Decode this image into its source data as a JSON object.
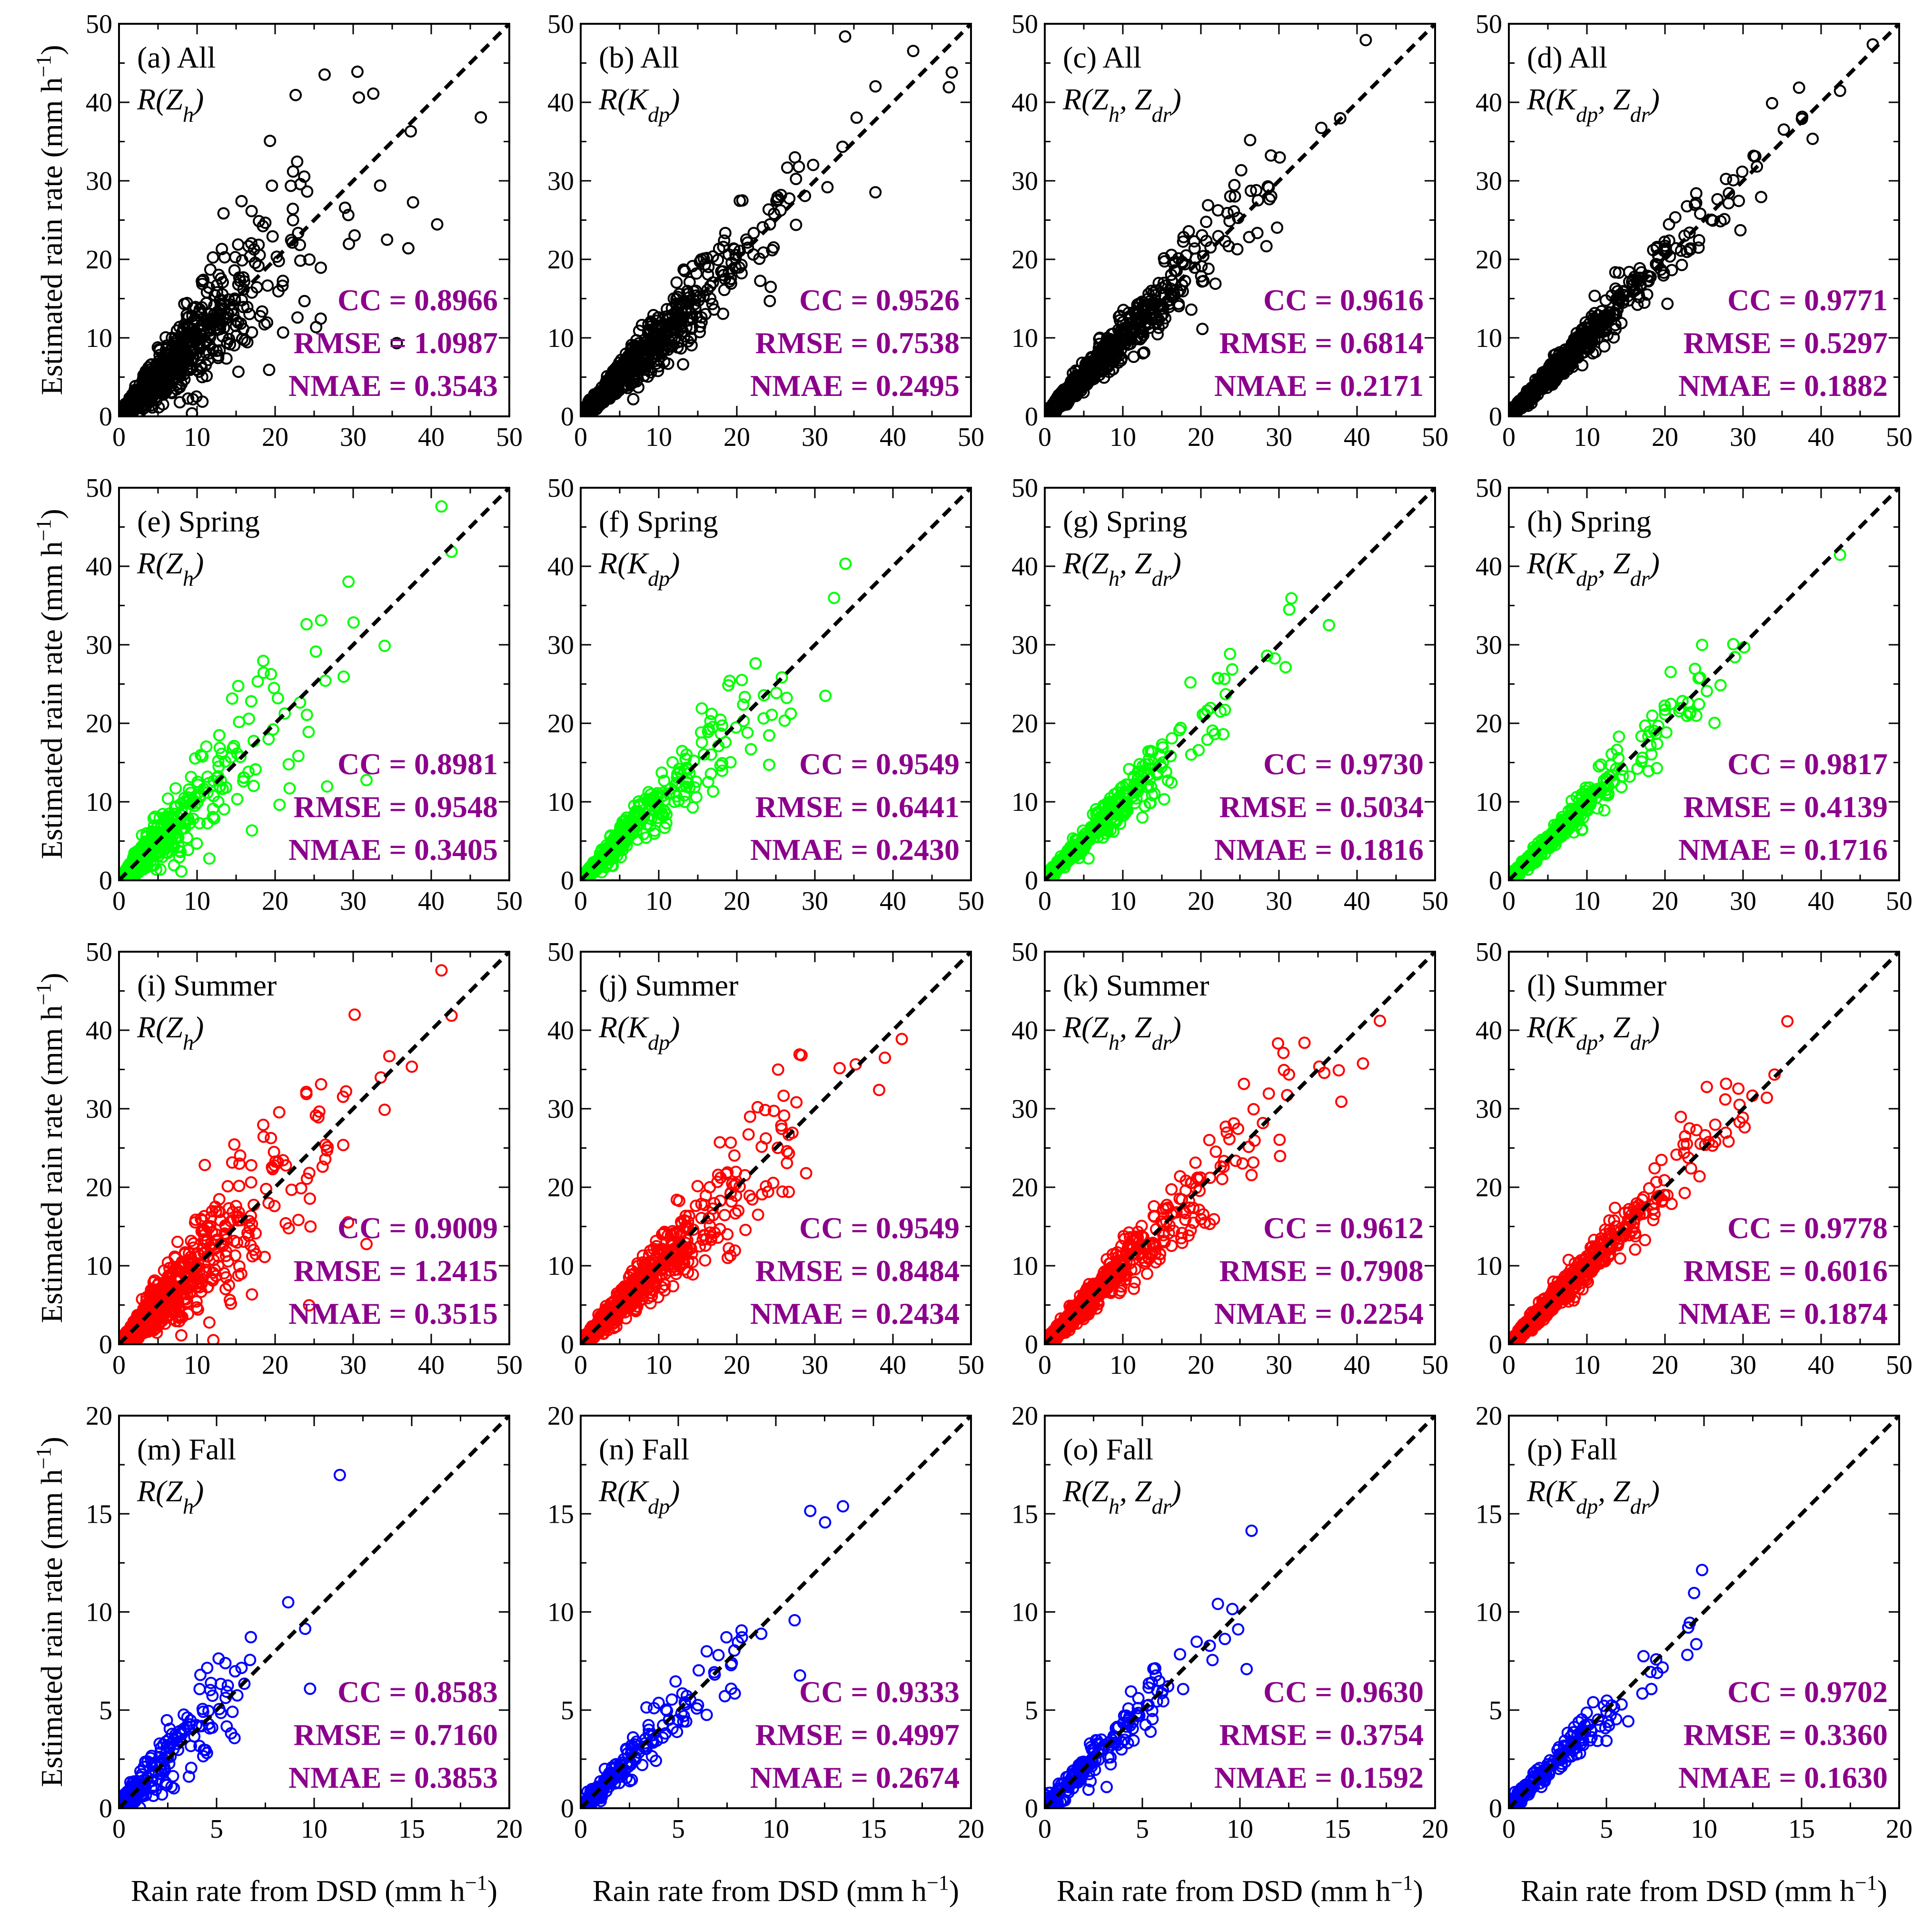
{
  "figure": {
    "xlabel": "Rain rate from DSD (mm h⁻¹)",
    "ylabel": "Estimated rain rate (mm h⁻¹)"
  },
  "colors": {
    "All": "#000000",
    "Spring": "#00ff00",
    "Summer": "#ff0000",
    "Fall": "#0000ff",
    "stats": "#8b008b",
    "identity": "#000000"
  },
  "chart_data": [
    {
      "type": "scatter",
      "id": "a",
      "title": "(a) All",
      "estimator": "R(Zh)",
      "season": "All",
      "xlim": [
        0,
        50
      ],
      "ylim": [
        0,
        50
      ],
      "ticks": [
        0,
        10,
        20,
        30,
        40,
        50
      ],
      "stats": {
        "cc": "CC = 0.8966",
        "rmse": "RMSE = 1.0987",
        "nmae": "NMAE = 0.3543"
      }
    },
    {
      "type": "scatter",
      "id": "b",
      "title": "(b) All",
      "estimator": "R(Kdp)",
      "season": "All",
      "xlim": [
        0,
        50
      ],
      "ylim": [
        0,
        50
      ],
      "ticks": [
        0,
        10,
        20,
        30,
        40,
        50
      ],
      "stats": {
        "cc": "CC = 0.9526",
        "rmse": "RMSE = 0.7538",
        "nmae": "NMAE = 0.2495"
      }
    },
    {
      "type": "scatter",
      "id": "c",
      "title": "(c) All",
      "estimator": "R(Zh, Zdr)",
      "season": "All",
      "xlim": [
        0,
        50
      ],
      "ylim": [
        0,
        50
      ],
      "ticks": [
        0,
        10,
        20,
        30,
        40,
        50
      ],
      "stats": {
        "cc": "CC = 0.9616",
        "rmse": "RMSE = 0.6814",
        "nmae": "NMAE = 0.2171"
      }
    },
    {
      "type": "scatter",
      "id": "d",
      "title": "(d) All",
      "estimator": "R(Kdp, Zdr)",
      "season": "All",
      "xlim": [
        0,
        50
      ],
      "ylim": [
        0,
        50
      ],
      "ticks": [
        0,
        10,
        20,
        30,
        40,
        50
      ],
      "stats": {
        "cc": "CC = 0.9771",
        "rmse": "RMSE = 0.5297",
        "nmae": "NMAE = 0.1882"
      }
    },
    {
      "type": "scatter",
      "id": "e",
      "title": "(e) Spring",
      "estimator": "R(Zh)",
      "season": "Spring",
      "xlim": [
        0,
        50
      ],
      "ylim": [
        0,
        50
      ],
      "ticks": [
        0,
        10,
        20,
        30,
        40,
        50
      ],
      "stats": {
        "cc": "CC = 0.8981",
        "rmse": "RMSE = 0.9548",
        "nmae": "NMAE = 0.3405"
      }
    },
    {
      "type": "scatter",
      "id": "f",
      "title": "(f) Spring",
      "estimator": "R(Kdp)",
      "season": "Spring",
      "xlim": [
        0,
        50
      ],
      "ylim": [
        0,
        50
      ],
      "ticks": [
        0,
        10,
        20,
        30,
        40,
        50
      ],
      "stats": {
        "cc": "CC = 0.9549",
        "rmse": "RMSE = 0.6441",
        "nmae": "NMAE = 0.2430"
      }
    },
    {
      "type": "scatter",
      "id": "g",
      "title": "(g) Spring",
      "estimator": "R(Zh, Zdr)",
      "season": "Spring",
      "xlim": [
        0,
        50
      ],
      "ylim": [
        0,
        50
      ],
      "ticks": [
        0,
        10,
        20,
        30,
        40,
        50
      ],
      "stats": {
        "cc": "CC = 0.9730",
        "rmse": "RMSE = 0.5034",
        "nmae": "NMAE = 0.1816"
      }
    },
    {
      "type": "scatter",
      "id": "h",
      "title": "(h) Spring",
      "estimator": "R(Kdp, Zdr)",
      "season": "Spring",
      "xlim": [
        0,
        50
      ],
      "ylim": [
        0,
        50
      ],
      "ticks": [
        0,
        10,
        20,
        30,
        40,
        50
      ],
      "stats": {
        "cc": "CC = 0.9817",
        "rmse": "RMSE = 0.4139",
        "nmae": "NMAE = 0.1716"
      }
    },
    {
      "type": "scatter",
      "id": "i",
      "title": "(i) Summer",
      "estimator": "R(Zh)",
      "season": "Summer",
      "xlim": [
        0,
        50
      ],
      "ylim": [
        0,
        50
      ],
      "ticks": [
        0,
        10,
        20,
        30,
        40,
        50
      ],
      "stats": {
        "cc": "CC = 0.9009",
        "rmse": "RMSE = 1.2415",
        "nmae": "NMAE = 0.3515"
      }
    },
    {
      "type": "scatter",
      "id": "j",
      "title": "(j) Summer",
      "estimator": "R(Kdp)",
      "season": "Summer",
      "xlim": [
        0,
        50
      ],
      "ylim": [
        0,
        50
      ],
      "ticks": [
        0,
        10,
        20,
        30,
        40,
        50
      ],
      "stats": {
        "cc": "CC = 0.9549",
        "rmse": "RMSE = 0.8484",
        "nmae": "NMAE = 0.2434"
      }
    },
    {
      "type": "scatter",
      "id": "k",
      "title": "(k) Summer",
      "estimator": "R(Zh, Zdr)",
      "season": "Summer",
      "xlim": [
        0,
        50
      ],
      "ylim": [
        0,
        50
      ],
      "ticks": [
        0,
        10,
        20,
        30,
        40,
        50
      ],
      "stats": {
        "cc": "CC = 0.9612",
        "rmse": "RMSE = 0.7908",
        "nmae": "NMAE = 0.2254"
      }
    },
    {
      "type": "scatter",
      "id": "l",
      "title": "(l) Summer",
      "estimator": "R(Kdp, Zdr)",
      "season": "Summer",
      "xlim": [
        0,
        50
      ],
      "ylim": [
        0,
        50
      ],
      "ticks": [
        0,
        10,
        20,
        30,
        40,
        50
      ],
      "stats": {
        "cc": "CC = 0.9778",
        "rmse": "RMSE = 0.6016",
        "nmae": "NMAE = 0.1874"
      }
    },
    {
      "type": "scatter",
      "id": "m",
      "title": "(m) Fall",
      "estimator": "R(Zh)",
      "season": "Fall",
      "xlim": [
        0,
        20
      ],
      "ylim": [
        0,
        20
      ],
      "ticks": [
        0,
        5,
        10,
        15,
        20
      ],
      "stats": {
        "cc": "CC = 0.8583",
        "rmse": "RMSE = 0.7160",
        "nmae": "NMAE = 0.3853"
      }
    },
    {
      "type": "scatter",
      "id": "n",
      "title": "(n) Fall",
      "estimator": "R(Kdp)",
      "season": "Fall",
      "xlim": [
        0,
        20
      ],
      "ylim": [
        0,
        20
      ],
      "ticks": [
        0,
        5,
        10,
        15,
        20
      ],
      "stats": {
        "cc": "CC = 0.9333",
        "rmse": "RMSE = 0.4997",
        "nmae": "NMAE = 0.2674"
      }
    },
    {
      "type": "scatter",
      "id": "o",
      "title": "(o) Fall",
      "estimator": "R(Zh, Zdr)",
      "season": "Fall",
      "xlim": [
        0,
        20
      ],
      "ylim": [
        0,
        20
      ],
      "ticks": [
        0,
        5,
        10,
        15,
        20
      ],
      "stats": {
        "cc": "CC = 0.9630",
        "rmse": "RMSE = 0.3754",
        "nmae": "NMAE = 0.1592"
      }
    },
    {
      "type": "scatter",
      "id": "p",
      "title": "(p) Fall",
      "estimator": "R(Kdp, Zdr)",
      "season": "Fall",
      "xlim": [
        0,
        20
      ],
      "ylim": [
        0,
        20
      ],
      "ticks": [
        0,
        5,
        10,
        15,
        20
      ],
      "stats": {
        "cc": "CC = 0.9702",
        "rmse": "RMSE = 0.3360",
        "nmae": "NMAE = 0.1630"
      }
    }
  ]
}
